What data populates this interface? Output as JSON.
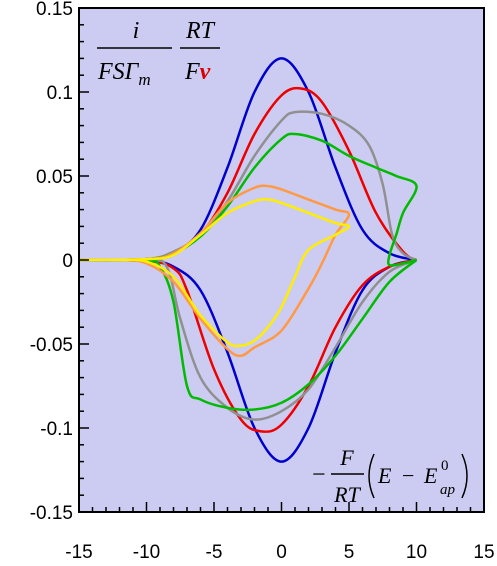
{
  "chart_data": {
    "type": "line",
    "title": "",
    "xlabel": "−F/RT (E − E⁰ap)",
    "ylabel": "i/(FSΓm) · RT/(Fv)",
    "xlim": [
      -15,
      15
    ],
    "ylim": [
      -0.15,
      0.15
    ],
    "x_ticks": [
      -15,
      -10,
      -5,
      0,
      5,
      10,
      15
    ],
    "y_ticks": [
      0.15,
      0.1,
      0.05,
      0,
      -0.05,
      -0.1,
      -0.15
    ],
    "x_tick_labels": [
      "-15",
      "-10",
      "-5",
      "0",
      "5",
      "10",
      "15"
    ],
    "y_tick_labels": [
      "0.15",
      "0.1",
      "0.05",
      "0",
      "-0.05",
      "-0.1",
      "-0.15"
    ],
    "plot_background": "#ccccf2",
    "grid": false,
    "legend": "none",
    "ylabel_parts": {
      "num1": "i",
      "den1": "FSΓ",
      "den1_sub": "m",
      "num2": "RT",
      "den2": "F",
      "den2_v": "v"
    },
    "xlabel_parts": {
      "frac_num": "F",
      "frac_den": "RT",
      "E": "E",
      "E0": "E",
      "E0_sup": "0",
      "E0_sub": "ap",
      "minus": "−"
    },
    "series": [
      {
        "color": "#0000cc",
        "upper": [
          [
            -15,
            0
          ],
          [
            -10,
            0.0005
          ],
          [
            -8,
            0.004
          ],
          [
            -6,
            0.018
          ],
          [
            -4,
            0.055
          ],
          [
            -2,
            0.1
          ],
          [
            0,
            0.12
          ],
          [
            2,
            0.1
          ],
          [
            4,
            0.055
          ],
          [
            6,
            0.018
          ],
          [
            8,
            0.004
          ],
          [
            10,
            0
          ]
        ],
        "lower": [
          [
            -15,
            0
          ],
          [
            -10,
            -0.0005
          ],
          [
            -8,
            -0.004
          ],
          [
            -6,
            -0.018
          ],
          [
            -4,
            -0.055
          ],
          [
            -2,
            -0.1
          ],
          [
            0,
            -0.12
          ],
          [
            2,
            -0.1
          ],
          [
            4,
            -0.055
          ],
          [
            6,
            -0.018
          ],
          [
            8,
            -0.004
          ],
          [
            10,
            0
          ]
        ]
      },
      {
        "color": "#ee0000",
        "upper": [
          [
            -15,
            0
          ],
          [
            -10,
            0.0005
          ],
          [
            -8,
            0.004
          ],
          [
            -6,
            0.015
          ],
          [
            -4,
            0.04
          ],
          [
            -2,
            0.075
          ],
          [
            0,
            0.098
          ],
          [
            1.5,
            0.102
          ],
          [
            3,
            0.094
          ],
          [
            5,
            0.065
          ],
          [
            7,
            0.028
          ],
          [
            9,
            0.005
          ],
          [
            10,
            0
          ]
        ],
        "lower": [
          [
            -15,
            0
          ],
          [
            -10,
            -0.0005
          ],
          [
            -8,
            -0.005
          ],
          [
            -7,
            -0.018
          ],
          [
            -5,
            -0.065
          ],
          [
            -3,
            -0.095
          ],
          [
            -1.5,
            -0.102
          ],
          [
            0,
            -0.098
          ],
          [
            2,
            -0.075
          ],
          [
            4,
            -0.04
          ],
          [
            6,
            -0.015
          ],
          [
            8,
            -0.004
          ],
          [
            10,
            0
          ]
        ]
      },
      {
        "color": "#909090",
        "upper": [
          [
            -15,
            0
          ],
          [
            -10,
            0.0005
          ],
          [
            -8,
            0.005
          ],
          [
            -6,
            0.015
          ],
          [
            -4,
            0.035
          ],
          [
            -2,
            0.062
          ],
          [
            0,
            0.083
          ],
          [
            1,
            0.088
          ],
          [
            3,
            0.087
          ],
          [
            5,
            0.08
          ],
          [
            6.5,
            0.068
          ],
          [
            7.5,
            0.045
          ],
          [
            8.2,
            0.015
          ],
          [
            9,
            0.004
          ],
          [
            10,
            0
          ]
        ],
        "lower": [
          [
            -15,
            0
          ],
          [
            -10,
            -0.0005
          ],
          [
            -8.5,
            -0.004
          ],
          [
            -7.5,
            -0.035
          ],
          [
            -6,
            -0.07
          ],
          [
            -4,
            -0.088
          ],
          [
            -2,
            -0.095
          ],
          [
            0,
            -0.09
          ],
          [
            2,
            -0.077
          ],
          [
            4,
            -0.052
          ],
          [
            6,
            -0.025
          ],
          [
            8,
            -0.007
          ],
          [
            10,
            0
          ]
        ]
      },
      {
        "color": "#00bb00",
        "upper": [
          [
            -15,
            0
          ],
          [
            -10,
            0.0005
          ],
          [
            -8,
            0.004
          ],
          [
            -6,
            0.014
          ],
          [
            -4,
            0.032
          ],
          [
            -2,
            0.055
          ],
          [
            0,
            0.072
          ],
          [
            1,
            0.075
          ],
          [
            3,
            0.071
          ],
          [
            5,
            0.062
          ],
          [
            7,
            0.055
          ],
          [
            8.5,
            0.05
          ],
          [
            10,
            0.044
          ],
          [
            9,
            0.028
          ],
          [
            8.5,
            0.015
          ],
          [
            8,
            0.003
          ],
          [
            8,
            -0.003
          ],
          [
            9,
            -0.002
          ],
          [
            10,
            0
          ]
        ],
        "lower": [
          [
            -15,
            0
          ],
          [
            -10,
            -0.0005
          ],
          [
            -9,
            -0.004
          ],
          [
            -8,
            -0.025
          ],
          [
            -7,
            -0.075
          ],
          [
            -6,
            -0.083
          ],
          [
            -4,
            -0.088
          ],
          [
            -2,
            -0.089
          ],
          [
            0,
            -0.085
          ],
          [
            2,
            -0.074
          ],
          [
            4,
            -0.057
          ],
          [
            6,
            -0.035
          ],
          [
            8,
            -0.013
          ],
          [
            10,
            0
          ]
        ]
      },
      {
        "color": "#ff9944",
        "upper": [
          [
            -15,
            0
          ],
          [
            -10,
            0.0005
          ],
          [
            -8,
            0.004
          ],
          [
            -6,
            0.016
          ],
          [
            -4,
            0.034
          ],
          [
            -2,
            0.043
          ],
          [
            -1,
            0.044
          ],
          [
            0,
            0.042
          ],
          [
            2,
            0.036
          ],
          [
            4,
            0.03
          ],
          [
            5,
            0.027
          ],
          [
            4,
            0.015
          ],
          [
            3,
            -0.002
          ],
          [
            2,
            -0.017
          ],
          [
            0,
            -0.042
          ],
          [
            -2,
            -0.052
          ],
          [
            -3,
            -0.057
          ],
          [
            -4,
            -0.053
          ],
          [
            -6,
            -0.035
          ],
          [
            -8,
            -0.013
          ],
          [
            -10,
            -0.002
          ],
          [
            -12,
            0
          ],
          [
            -15,
            0
          ]
        ]
      },
      {
        "color": "#ffee00",
        "upper": [
          [
            -15,
            0
          ],
          [
            -10,
            0.0005
          ],
          [
            -8,
            0.003
          ],
          [
            -6,
            0.015
          ],
          [
            -4,
            0.028
          ],
          [
            -2,
            0.035
          ],
          [
            -1,
            0.036
          ],
          [
            0,
            0.034
          ],
          [
            2,
            0.028
          ],
          [
            4,
            0.022
          ],
          [
            5,
            0.02
          ],
          [
            4,
            0.015
          ],
          [
            2,
            0.006
          ],
          [
            1,
            -0.01
          ],
          [
            0,
            -0.028
          ],
          [
            -1,
            -0.04
          ],
          [
            -2,
            -0.048
          ],
          [
            -3,
            -0.051
          ],
          [
            -4,
            -0.049
          ],
          [
            -6,
            -0.033
          ],
          [
            -8,
            -0.01
          ],
          [
            -10,
            -0.001
          ],
          [
            -12,
            0
          ],
          [
            -15,
            0
          ]
        ]
      }
    ]
  }
}
